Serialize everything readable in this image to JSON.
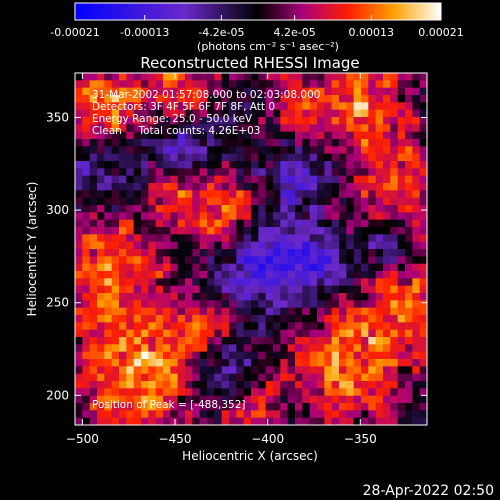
{
  "colorbar": {
    "tick_labels": [
      "-0.00021",
      "-0.00013",
      "-4.2e-05",
      "4.2e-05",
      "0.00013",
      "0.00021"
    ],
    "tick_values": [
      -0.00021,
      -0.00013,
      -4.2e-05,
      4.2e-05,
      0.00013,
      0.00021
    ],
    "range": [
      -0.00021,
      0.00021
    ],
    "unit_label": "(photons cm⁻² s⁻¹ asec⁻²)"
  },
  "chart_data": {
    "type": "heatmap",
    "title": "Reconstructed RHESSI Image",
    "xlabel": "Heliocentric X (arcsec)",
    "ylabel": "Heliocentric Y (arcsec)",
    "xlim": [
      -504,
      -314
    ],
    "ylim": [
      184,
      374
    ],
    "x_ticks": [
      -500,
      -450,
      -400,
      -350
    ],
    "y_ticks": [
      200,
      250,
      300,
      350
    ],
    "annotations": [
      "31-Mar-2002 01:57:08.000 to 02:03:08.000",
      "Detectors: 3F 4F 5F 6F 7F 8F, Att 0",
      "Energy Range: 25.0 - 50.0 keV",
      "Clean     Total counts: 4.26E+03"
    ],
    "peak_label": "Position of Peak = [-488,352]",
    "peak": [
      -488,
      352
    ],
    "grid_shape": [
      48,
      48
    ],
    "value_range": [
      -0.00021,
      0.00021
    ]
  },
  "footer": {
    "timestamp": "28-Apr-2022 02:50"
  }
}
